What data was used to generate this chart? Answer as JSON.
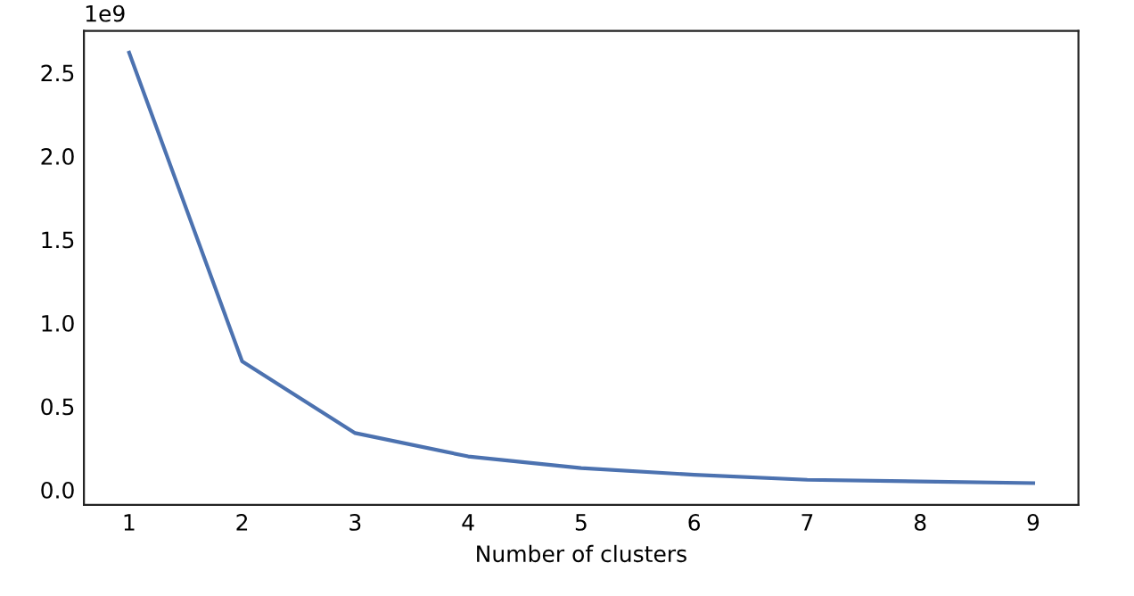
{
  "chart_data": {
    "type": "line",
    "xlabel": "Number of clusters",
    "annotations": [
      "1e9"
    ],
    "x": [
      1,
      2,
      3,
      4,
      5,
      6,
      7,
      8,
      9
    ],
    "series": [
      {
        "color": "#4c72b0",
        "values": [
          2.62,
          0.77,
          0.34,
          0.2,
          0.13,
          0.09,
          0.06,
          0.05,
          0.04
        ]
      }
    ],
    "xlim": [
      0.6,
      9.4
    ],
    "ylim": [
      -0.09,
      2.75
    ],
    "xticks": [
      1,
      2,
      3,
      4,
      5,
      6,
      7,
      8,
      9
    ],
    "yticks": [
      {
        "value": 0,
        "label": "0.0"
      },
      {
        "value": 0.5,
        "label": "0.5"
      },
      {
        "value": 1,
        "label": "1.0"
      },
      {
        "value": 1.5,
        "label": "1.5"
      },
      {
        "value": 2,
        "label": "2.0"
      },
      {
        "value": 2.5,
        "label": "2.5"
      }
    ],
    "grid": false
  }
}
